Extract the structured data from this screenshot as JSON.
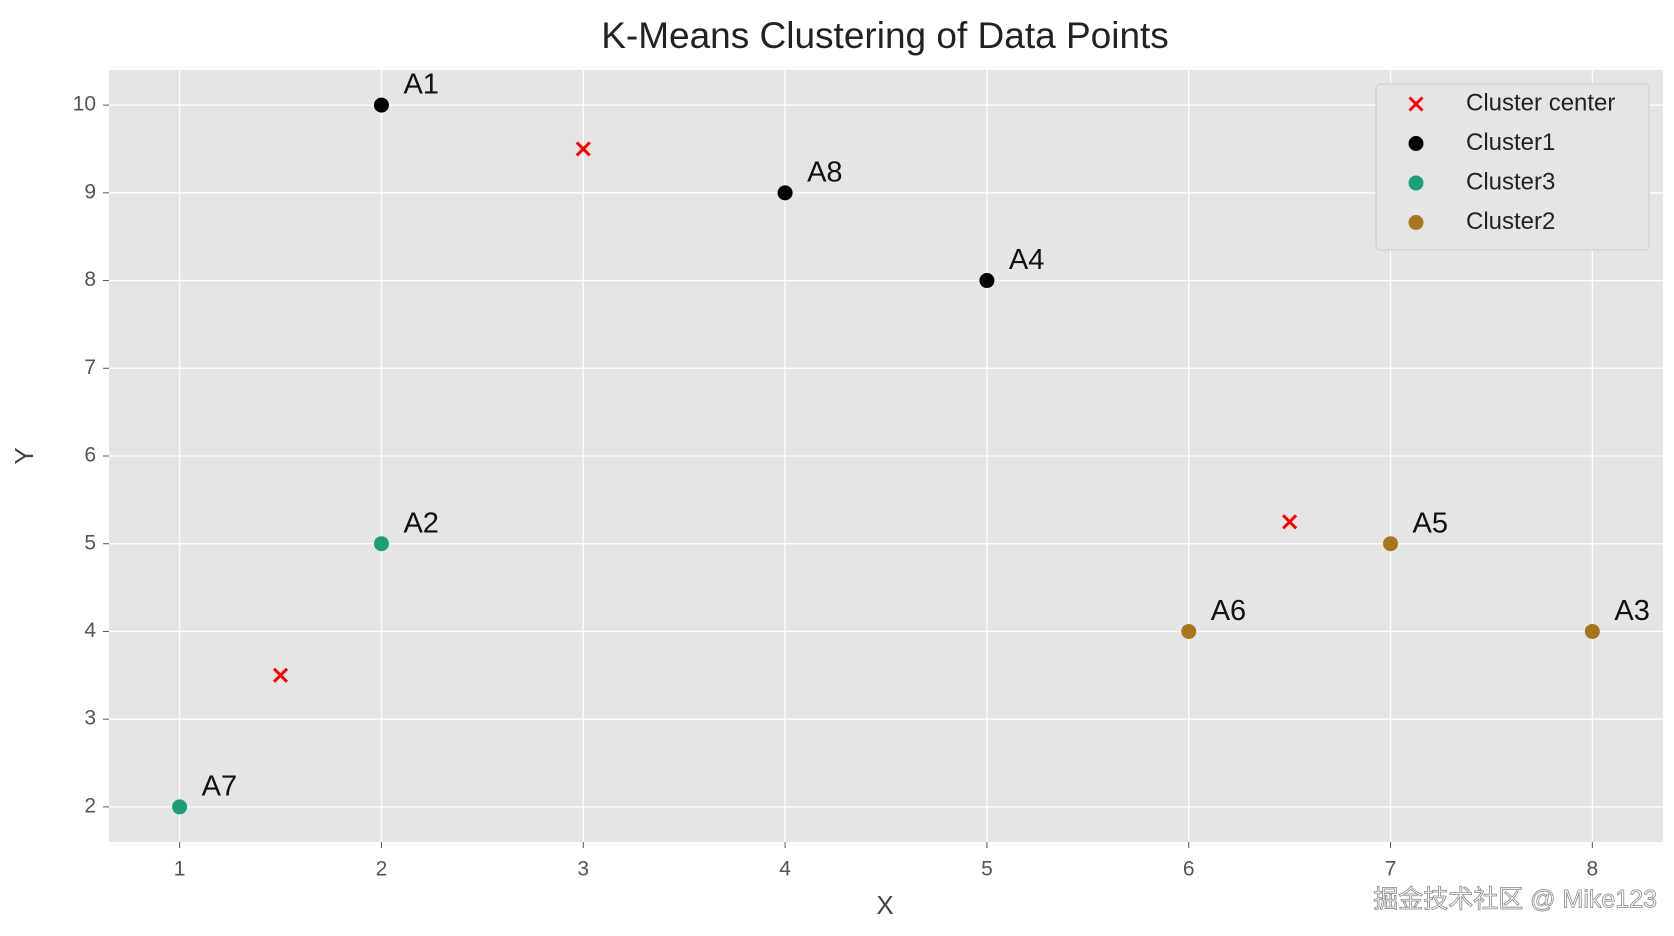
{
  "chart_data": {
    "type": "scatter",
    "title": "K-Means Clustering of Data Points",
    "x_label": "X",
    "y_label": "Y",
    "xlim": [
      0.65,
      8.35
    ],
    "ylim": [
      1.6,
      10.4
    ],
    "xticks": [
      1,
      2,
      3,
      4,
      5,
      6,
      7,
      8
    ],
    "yticks": [
      2,
      3,
      4,
      5,
      6,
      7,
      8,
      9,
      10
    ],
    "grid": true,
    "legend": "upper right",
    "series": [
      {
        "name": "Cluster center",
        "color": "#ff0000",
        "marker": "x",
        "x": [
          1.5,
          3,
          6.5
        ],
        "values": [
          3.5,
          9.5,
          5.25
        ]
      },
      {
        "name": "Cluster1",
        "color": "#000000",
        "marker": "o",
        "x": [
          2,
          4,
          5
        ],
        "values": [
          10,
          9,
          8
        ],
        "labels": [
          "A1",
          "A8",
          "A4"
        ]
      },
      {
        "name": "Cluster3",
        "color": "#1b9e77",
        "marker": "o",
        "x": [
          2,
          1
        ],
        "values": [
          5,
          2
        ],
        "labels": [
          "A2",
          "A7"
        ]
      },
      {
        "name": "Cluster2",
        "color": "#a6761d",
        "marker": "o",
        "x": [
          6,
          7,
          8
        ],
        "values": [
          4,
          5,
          4
        ],
        "labels": [
          "A6",
          "A5",
          "A3"
        ]
      }
    ],
    "watermark": "掘金技术社区 @ Mike123"
  }
}
